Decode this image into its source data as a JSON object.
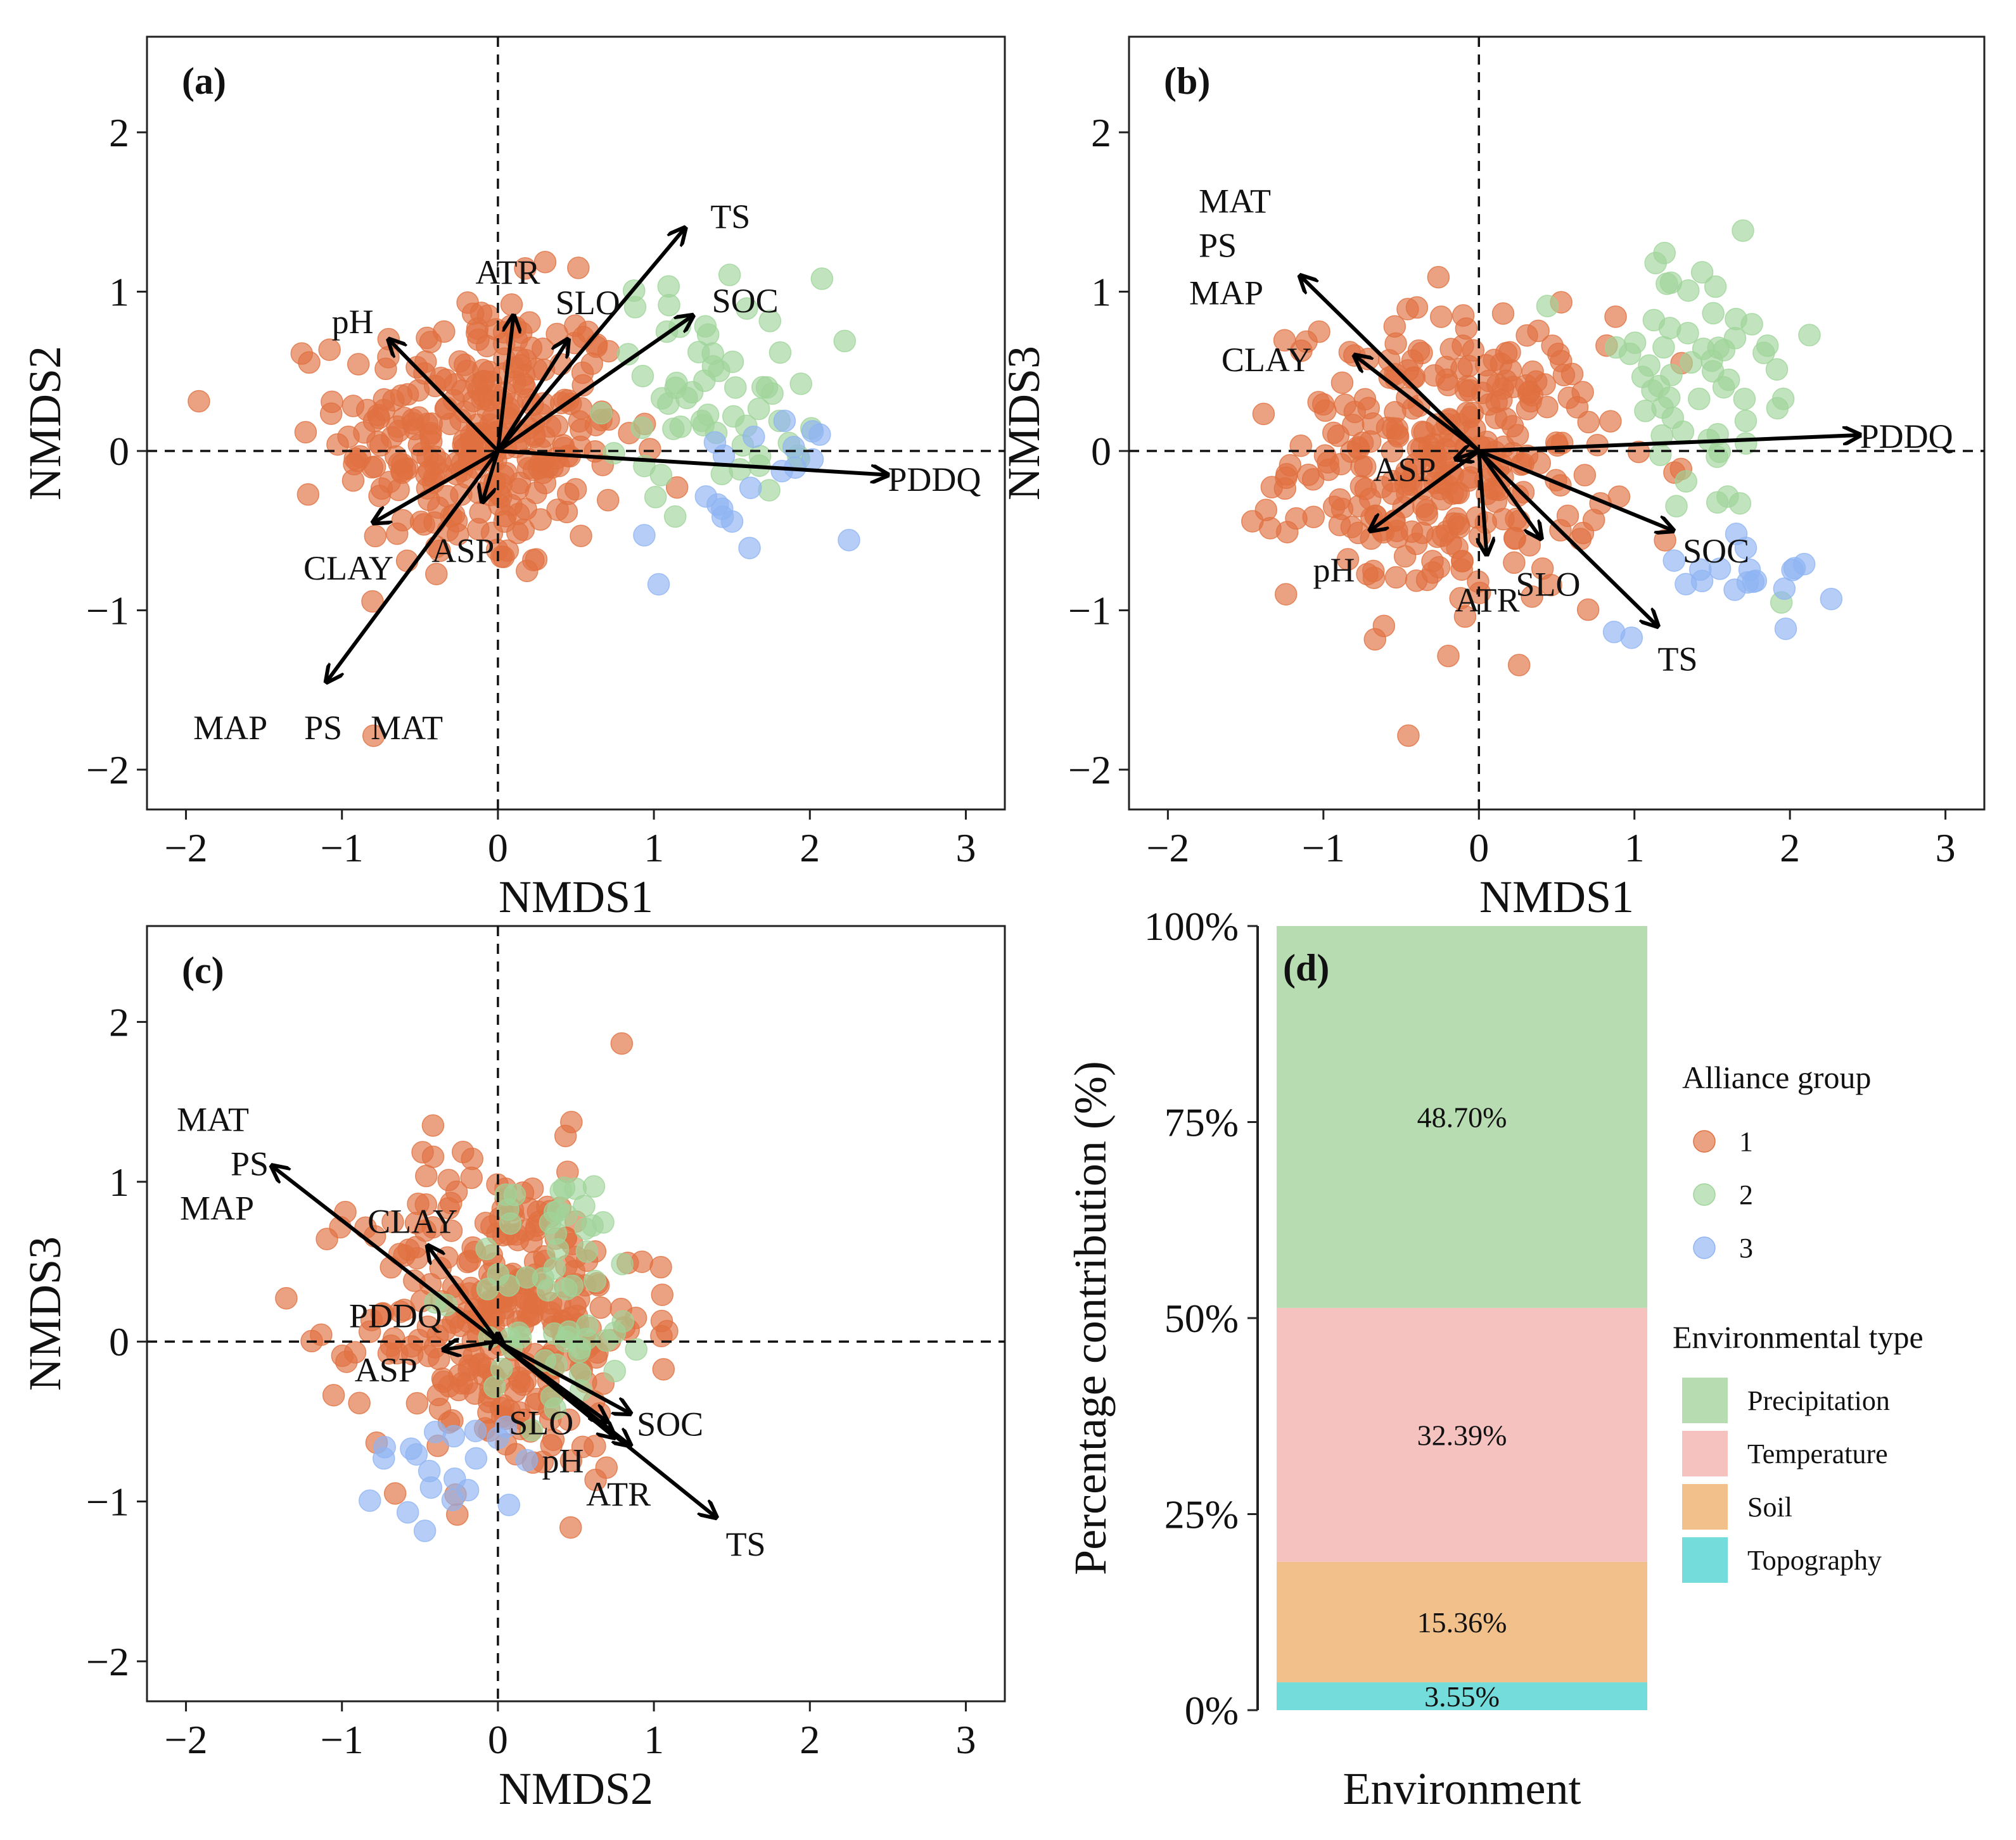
{
  "chart_data": [
    {
      "panel": "(a)",
      "type": "scatter",
      "xlabel": "NMDS1",
      "ylabel": "NMDS2",
      "xlim": [
        -2.25,
        3.25
      ],
      "ylim": [
        -2.25,
        2.6
      ],
      "xticks": [
        "−2",
        "−1",
        "0",
        "1",
        "2",
        "3"
      ],
      "yticks": [
        "−2",
        "−1",
        "0",
        "1",
        "2"
      ],
      "clouds": [
        {
          "group": "1",
          "n": 300,
          "cx": -0.1,
          "cy": 0.1,
          "sx": 0.45,
          "sy": 0.45
        },
        {
          "group": "2",
          "n": 60,
          "cx": 1.4,
          "cy": 0.4,
          "sx": 0.35,
          "sy": 0.35
        },
        {
          "group": "3",
          "n": 20,
          "cx": 1.6,
          "cy": -0.3,
          "sx": 0.35,
          "sy": 0.3
        }
      ],
      "vectors": [
        {
          "label": "TS",
          "x": 1.2,
          "y": 1.4
        },
        {
          "label": "SOC",
          "x": 1.25,
          "y": 0.85
        },
        {
          "label": "ATR",
          "x": 0.1,
          "y": 0.85
        },
        {
          "label": "SLO",
          "x": 0.45,
          "y": 0.7
        },
        {
          "label": "pH",
          "x": -0.7,
          "y": 0.7
        },
        {
          "label": "PDDQ",
          "x": 2.5,
          "y": -0.15
        },
        {
          "label": "CLAY",
          "x": -0.8,
          "y": -0.45
        },
        {
          "label": "ASP",
          "x": -0.1,
          "y": -0.32
        },
        {
          "label": "MAP",
          "x": -1.1,
          "y": -1.45
        },
        {
          "label": "PS",
          "x": -1.1,
          "y": -1.45
        },
        {
          "label": "MAT",
          "x": -1.1,
          "y": -1.45
        }
      ]
    },
    {
      "panel": "(b)",
      "type": "scatter",
      "xlabel": "NMDS1",
      "ylabel": "NMDS3",
      "xlim": [
        -2.25,
        3.25
      ],
      "ylim": [
        -2.25,
        2.6
      ],
      "xticks": [
        "−2",
        "−1",
        "0",
        "1",
        "2",
        "3"
      ],
      "yticks": [
        "−2",
        "−1",
        "0",
        "1",
        "2"
      ],
      "clouds": [
        {
          "group": "1",
          "n": 300,
          "cx": -0.2,
          "cy": -0.05,
          "sx": 0.5,
          "sy": 0.45
        },
        {
          "group": "2",
          "n": 60,
          "cx": 1.4,
          "cy": 0.4,
          "sx": 0.4,
          "sy": 0.45
        },
        {
          "group": "3",
          "n": 20,
          "cx": 1.6,
          "cy": -0.75,
          "sx": 0.35,
          "sy": 0.2
        }
      ],
      "vectors": [
        {
          "label": "MAT",
          "x": -1.15,
          "y": 1.1
        },
        {
          "label": "PS",
          "x": -1.15,
          "y": 1.1
        },
        {
          "label": "MAP",
          "x": -1.15,
          "y": 1.1
        },
        {
          "label": "CLAY",
          "x": -0.8,
          "y": 0.6
        },
        {
          "label": "PDDQ",
          "x": 2.45,
          "y": 0.1
        },
        {
          "label": "ASP",
          "x": -0.15,
          "y": -0.05
        },
        {
          "label": "pH",
          "x": -0.7,
          "y": -0.5
        },
        {
          "label": "ATR",
          "x": 0.05,
          "y": -0.65
        },
        {
          "label": "SLO",
          "x": 0.4,
          "y": -0.55
        },
        {
          "label": "SOC",
          "x": 1.25,
          "y": -0.5
        },
        {
          "label": "TS",
          "x": 1.15,
          "y": -1.1
        }
      ]
    },
    {
      "panel": "(c)",
      "type": "scatter",
      "xlabel": "NMDS2",
      "ylabel": "NMDS3",
      "xlim": [
        -2.25,
        3.25
      ],
      "ylim": [
        -2.25,
        2.6
      ],
      "xticks": [
        "−2",
        "−1",
        "0",
        "1",
        "2",
        "3"
      ],
      "yticks": [
        "−2",
        "−1",
        "0",
        "1",
        "2"
      ],
      "clouds": [
        {
          "group": "1",
          "n": 300,
          "cx": 0.05,
          "cy": 0.15,
          "sx": 0.45,
          "sy": 0.5
        },
        {
          "group": "2",
          "n": 60,
          "cx": 0.4,
          "cy": 0.3,
          "sx": 0.3,
          "sy": 0.4
        },
        {
          "group": "3",
          "n": 20,
          "cx": -0.3,
          "cy": -0.8,
          "sx": 0.3,
          "sy": 0.2
        }
      ],
      "vectors": [
        {
          "label": "MAT",
          "x": -1.45,
          "y": 1.1
        },
        {
          "label": "PS",
          "x": -1.45,
          "y": 1.1
        },
        {
          "label": "MAP",
          "x": -1.45,
          "y": 1.1
        },
        {
          "label": "CLAY",
          "x": -0.45,
          "y": 0.6
        },
        {
          "label": "PDDQ",
          "x": 0.0,
          "y": 0.05
        },
        {
          "label": "ASP",
          "x": -0.35,
          "y": -0.05
        },
        {
          "label": "SLO",
          "x": 0.7,
          "y": -0.5
        },
        {
          "label": "SOC",
          "x": 0.85,
          "y": -0.45
        },
        {
          "label": "pH",
          "x": 0.75,
          "y": -0.6
        },
        {
          "label": "ATR",
          "x": 0.85,
          "y": -0.65
        },
        {
          "label": "TS",
          "x": 1.4,
          "y": -1.1
        }
      ]
    },
    {
      "panel": "(d)",
      "type": "bar",
      "stacked": true,
      "xlabel": "Environment",
      "ylabel": "Percentage contribution (%)",
      "ylim": [
        0,
        100
      ],
      "yticks": [
        {
          "value": 0,
          "label": "0%"
        },
        {
          "value": 25,
          "label": "25%"
        },
        {
          "value": 50,
          "label": "50%"
        },
        {
          "value": 75,
          "label": "75%"
        },
        {
          "value": 100,
          "label": "100%"
        }
      ],
      "segments": [
        {
          "name": "Topography",
          "value": 3.55,
          "label": "3.55%"
        },
        {
          "name": "Soil",
          "value": 15.36,
          "label": "15.36%"
        },
        {
          "name": "Temperature",
          "value": 32.39,
          "label": "32.39%"
        },
        {
          "name": "Precipitation",
          "value": 48.7,
          "label": "48.70%"
        }
      ]
    }
  ],
  "legend": {
    "alliance_title": "Alliance group",
    "alliance": [
      {
        "label": "1",
        "color": "#e07040"
      },
      {
        "label": "2",
        "color": "#9fd49a"
      },
      {
        "label": "3",
        "color": "#8fb4f2"
      }
    ],
    "env_title": "Environmental type",
    "env": [
      {
        "label": "Precipitation",
        "color": "#b7dcb2"
      },
      {
        "label": "Temperature",
        "color": "#f5c2c0"
      },
      {
        "label": "Soil",
        "color": "#f2c08a"
      },
      {
        "label": "Topography",
        "color": "#74dcda"
      }
    ]
  }
}
